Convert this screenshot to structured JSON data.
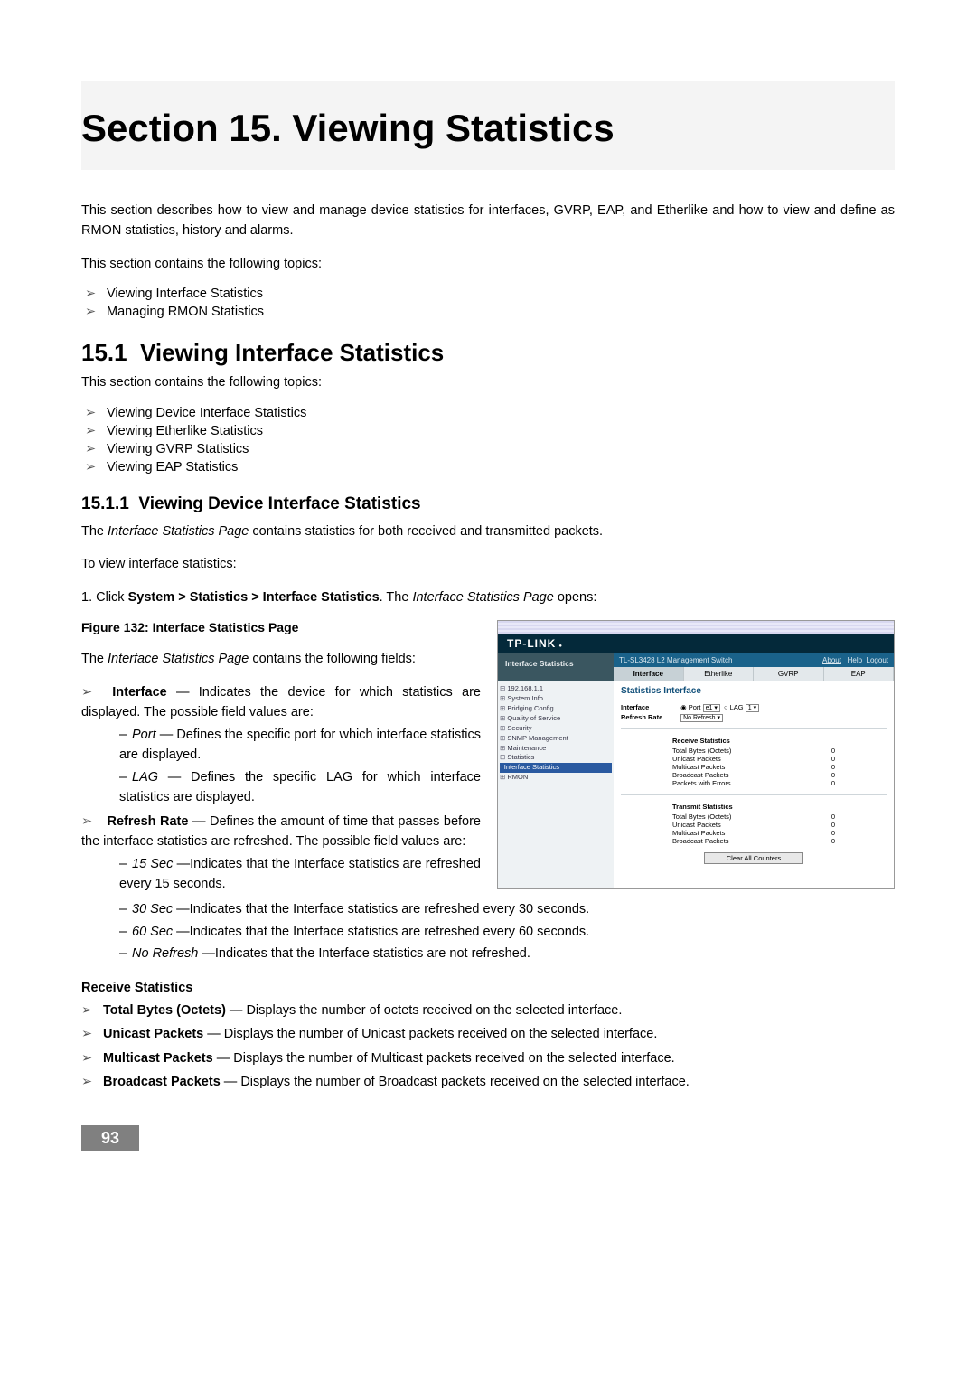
{
  "page_number": "93",
  "title": "Section 15.  Viewing Statistics",
  "intro_p1": "This section describes how to view and manage device statistics for interfaces, GVRP, EAP, and Etherlike and how to view and define as RMON statistics, history and alarms.",
  "intro_p2": "This section contains the following topics:",
  "top_list": [
    "Viewing Interface Statistics",
    "Managing RMON Statistics"
  ],
  "h2_num": "15.1",
  "h2_text": "Viewing Interface Statistics",
  "sub_p": "This section contains the following topics:",
  "sub_list": [
    "Viewing Device Interface Statistics",
    "Viewing Etherlike Statistics",
    "Viewing GVRP Statistics",
    "Viewing EAP Statistics"
  ],
  "h3_num": "15.1.1",
  "h3_text": "Viewing Device Interface Statistics",
  "h3_p1_pre": "The ",
  "h3_p1_it": "Interface Statistics Page",
  "h3_p1_post": " contains statistics for both received and transmitted packets.",
  "h3_p2": "To view interface statistics:",
  "step1_pre": "1.  Click ",
  "step1_bold": "System > Statistics > Interface Statistics",
  "step1_mid": ". The ",
  "step1_it": "Interface Statistics Page",
  "step1_post": " opens:",
  "fig_caption": "Figure 132: Interface Statistics Page",
  "left_p_pre": "The ",
  "left_p_it": "Interface Statistics Page",
  "left_p_post": " contains the following fields:",
  "field_interface_label": "Interface",
  "field_interface_desc": " — Indicates the device for which statistics are displayed. The possible field values are:",
  "port_label": "Port",
  "port_desc": " — Defines the specific port for which interface statistics are displayed.",
  "lag_label": "LAG",
  "lag_desc": " — Defines the specific LAG for which interface statistics are displayed.",
  "field_refresh_label": "Refresh Rate",
  "field_refresh_desc": " — Defines the amount of time that passes before the interface statistics are refreshed. The possible field values are:",
  "sec15_label": "15 Sec",
  "sec15_desc": " —Indicates that the Interface statistics are refreshed every 15 seconds.",
  "sec30_label": "30 Sec",
  "sec30_desc": " —Indicates that the Interface statistics are refreshed every 30 seconds.",
  "sec60_label": "60 Sec",
  "sec60_desc": " —Indicates that the Interface statistics are refreshed every 60 seconds.",
  "noref_label": "No Refresh",
  "noref_desc": " —Indicates that the Interface statistics are not refreshed.",
  "recv_heading": "Receive Statistics",
  "recv_items": {
    "tbo_label": "Total Bytes (Octets)",
    "tbo_desc": " — Displays the number of octets received on the selected interface.",
    "uni_label": "Unicast Packets",
    "uni_desc": " — Displays the number of Unicast packets received on the selected interface.",
    "mul_label": "Multicast Packets",
    "mul_desc": " — Displays the number of Multicast packets received on the selected interface.",
    "bro_label": "Broadcast Packets",
    "bro_desc": " — Displays the number of Broadcast packets received on the selected interface."
  },
  "shot": {
    "brand": "TP-LINK",
    "breadcrumb": "Interface Statistics",
    "mgmt_left": "TL-SL3428 L2 Management Switch",
    "about": "About",
    "help": "Help",
    "logout": "Logout",
    "tabs": [
      "Interface",
      "Etherlike",
      "GVRP",
      "EAP"
    ],
    "tree": {
      "root": "192.168.1.1",
      "items": [
        "System Info",
        "Bridging Config",
        "Quality of Service",
        "Security",
        "SNMP Management",
        "Maintenance"
      ],
      "stats": "Statistics",
      "leaf_sel": "Interface Statistics",
      "rmon": "RMON"
    },
    "panel_title": "Statistics Interface",
    "row_interface": "Interface",
    "row_port": "Port",
    "row_port_val": "e1",
    "row_lag": "LAG",
    "row_lag_val": "1",
    "row_refresh": "Refresh Rate",
    "row_refresh_val": "No Refresh",
    "recv_h": "Receive Statistics",
    "xmit_h": "Transmit Statistics",
    "rows": {
      "tbo": "Total Bytes (Octets)",
      "tbo_v": "0",
      "uni": "Unicast Packets",
      "uni_v": "0",
      "mul": "Multicast Packets",
      "mul_v": "0",
      "bro": "Broadcast Packets",
      "bro_v": "0",
      "err": "Packets with Errors",
      "err_v": "0"
    },
    "btn": "Clear All Counters"
  }
}
